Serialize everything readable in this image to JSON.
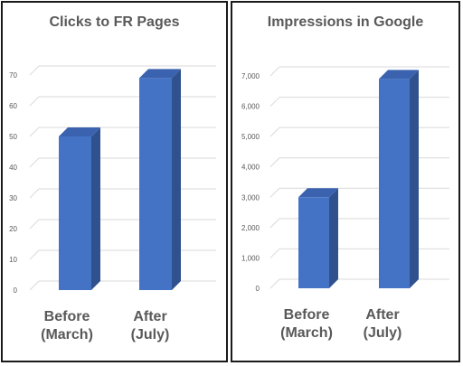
{
  "colors": {
    "bar_front": "#4472C4",
    "bar_side": "#2F528F",
    "bar_top": "#3A62AE",
    "grid": "#D9D9D9",
    "text": "#595959"
  },
  "chart_data": [
    {
      "type": "bar",
      "title": "Clicks to FR Pages",
      "categories": [
        "Before (March)",
        "After (July)"
      ],
      "category_lines": [
        [
          "Before",
          "(March)"
        ],
        [
          "After",
          "(July)"
        ]
      ],
      "values": [
        50,
        69
      ],
      "ylim": [
        0,
        70
      ],
      "yticks": [
        "0",
        "10",
        "20",
        "30",
        "40",
        "50",
        "60",
        "70"
      ],
      "grid": true,
      "xlabel": "",
      "ylabel": ""
    },
    {
      "type": "bar",
      "title": "Impressions in Google",
      "categories": [
        "Before (March)",
        "After (July)"
      ],
      "category_lines": [
        [
          "Before",
          "(March)"
        ],
        [
          "After",
          "(July)"
        ]
      ],
      "values": [
        3000,
        6900
      ],
      "ylim": [
        0,
        7000
      ],
      "yticks": [
        "0",
        "1,000",
        "2,000",
        "3,000",
        "4,000",
        "5,000",
        "6,000",
        "7,000"
      ],
      "grid": true,
      "xlabel": "",
      "ylabel": ""
    }
  ]
}
